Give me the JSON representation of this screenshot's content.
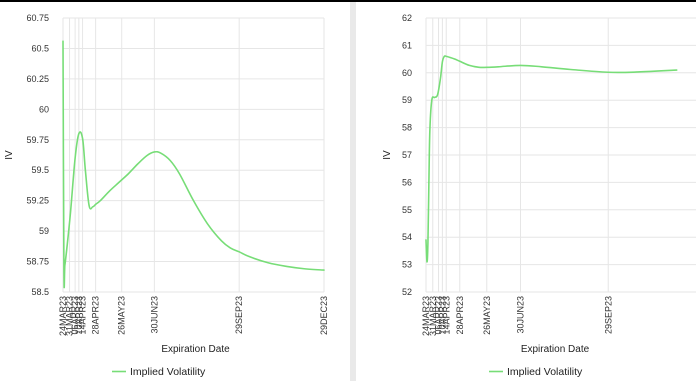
{
  "chart_data": [
    {
      "type": "line",
      "title": "",
      "xlabel": "Expiration Date",
      "ylabel": "IV",
      "ylim": [
        58.5,
        60.75
      ],
      "yticks": [
        "58.5",
        "58.75",
        "59",
        "59.25",
        "59.5",
        "59.75",
        "60",
        "60.25",
        "60.5",
        "60.75"
      ],
      "x_tick_labels": [
        "24MAR23",
        "31MAR23",
        "06APR23",
        "10APR23",
        "14APR23",
        "28APR23",
        "26MAY23",
        "30JUN23",
        "29SEP23",
        "29DEC23"
      ],
      "x_tick_days": [
        0,
        7,
        13,
        17,
        21,
        35,
        63,
        98,
        189,
        280
      ],
      "grid": true,
      "legend_position": "bottom-center",
      "series": [
        {
          "name": "Implied Volatility",
          "color": "#77dd77",
          "x_days": [
            0,
            1,
            2,
            4,
            8,
            13,
            17,
            21,
            24,
            28,
            32,
            35,
            40,
            50,
            60,
            70,
            80,
            90,
            98,
            105,
            115,
            125,
            140,
            155,
            170,
            180,
            189,
            200,
            220,
            240,
            260,
            280
          ],
          "values": [
            60.56,
            58.68,
            58.72,
            58.85,
            59.15,
            59.6,
            59.8,
            59.76,
            59.5,
            59.21,
            59.2,
            59.22,
            59.25,
            59.33,
            59.4,
            59.47,
            59.55,
            59.62,
            59.65,
            59.64,
            59.58,
            59.47,
            59.25,
            59.06,
            58.92,
            58.86,
            58.83,
            58.79,
            58.74,
            58.71,
            58.69,
            58.68
          ]
        }
      ]
    },
    {
      "type": "line",
      "title": "",
      "xlabel": "Expiration Date",
      "ylabel": "IV",
      "ylim": [
        52,
        62
      ],
      "yticks": [
        "52",
        "53",
        "54",
        "55",
        "56",
        "57",
        "58",
        "59",
        "60",
        "61",
        "62"
      ],
      "x_tick_labels": [
        "24MAR23",
        "31MAR23",
        "06APR23",
        "10APR23",
        "14APR23",
        "28APR23",
        "26MAY23",
        "30JUN23",
        "29SEP23"
      ],
      "x_tick_days": [
        0,
        7,
        13,
        17,
        21,
        35,
        63,
        98,
        189
      ],
      "grid": true,
      "legend_position": "bottom-center",
      "series": [
        {
          "name": "Implied Volatility",
          "color": "#77dd77",
          "x_days": [
            0,
            1,
            2,
            3,
            4,
            6,
            9,
            12,
            15,
            17,
            19,
            21,
            25,
            30,
            35,
            45,
            55,
            63,
            75,
            98,
            120,
            150,
            189,
            220,
            260
          ],
          "values": [
            53.9,
            53.1,
            53.8,
            56.0,
            57.9,
            59.0,
            59.1,
            59.2,
            59.8,
            60.4,
            60.6,
            60.6,
            60.56,
            60.5,
            60.42,
            60.27,
            60.2,
            60.2,
            60.22,
            60.27,
            60.22,
            60.12,
            60.02,
            60.03,
            60.1
          ]
        }
      ]
    }
  ]
}
